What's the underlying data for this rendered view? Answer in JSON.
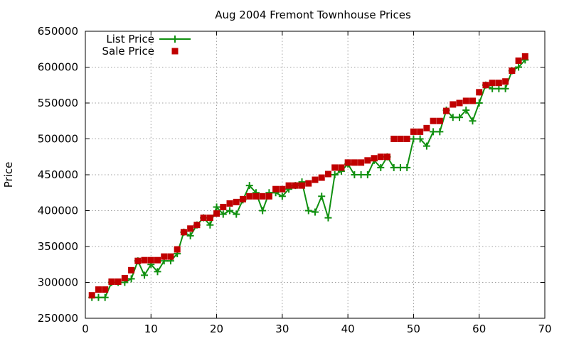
{
  "chart_data": {
    "type": "line",
    "title": "Aug 2004 Fremont Townhouse Prices",
    "xlabel": "",
    "ylabel": "Price",
    "xlim": [
      0,
      70
    ],
    "ylim": [
      250000,
      650000
    ],
    "xticks": [
      0,
      10,
      20,
      30,
      40,
      50,
      60,
      70
    ],
    "yticks": [
      250000,
      300000,
      350000,
      400000,
      450000,
      500000,
      550000,
      600000,
      650000
    ],
    "grid": true,
    "legend_position": "top-left",
    "series": [
      {
        "name": "List Price",
        "style": "linespoints",
        "color": "#109010",
        "x": [
          1,
          2,
          3,
          4,
          5,
          6,
          7,
          8,
          9,
          10,
          11,
          12,
          13,
          14,
          15,
          16,
          17,
          18,
          19,
          20,
          21,
          22,
          23,
          24,
          25,
          26,
          27,
          28,
          29,
          30,
          31,
          32,
          33,
          34,
          35,
          36,
          37,
          38,
          39,
          40,
          41,
          42,
          43,
          44,
          45,
          46,
          47,
          48,
          49,
          50,
          51,
          52,
          53,
          54,
          55,
          56,
          57,
          58,
          59,
          60,
          61,
          62,
          63,
          64,
          65,
          66,
          67
        ],
        "y": [
          279000,
          279000,
          279000,
          300000,
          300000,
          300000,
          305000,
          330000,
          310000,
          325000,
          315000,
          330000,
          330000,
          340000,
          370000,
          365000,
          380000,
          390000,
          380000,
          405000,
          395000,
          400000,
          395000,
          415000,
          435000,
          425000,
          400000,
          425000,
          425000,
          420000,
          430000,
          435000,
          440000,
          400000,
          398000,
          420000,
          390000,
          450000,
          455000,
          465000,
          450000,
          450000,
          450000,
          470000,
          460000,
          475000,
          460000,
          460000,
          460000,
          500000,
          500000,
          490000,
          510000,
          510000,
          540000,
          530000,
          530000,
          540000,
          525000,
          550000,
          575000,
          570000,
          570000,
          570000,
          595000,
          600000,
          610000
        ]
      },
      {
        "name": "Sale Price",
        "style": "points",
        "color": "#c00000",
        "x": [
          1,
          2,
          3,
          4,
          5,
          6,
          7,
          8,
          9,
          10,
          11,
          12,
          13,
          14,
          15,
          16,
          17,
          18,
          19,
          20,
          21,
          22,
          23,
          24,
          25,
          26,
          27,
          28,
          29,
          30,
          31,
          32,
          33,
          34,
          35,
          36,
          37,
          38,
          39,
          40,
          41,
          42,
          43,
          44,
          45,
          46,
          47,
          48,
          49,
          50,
          51,
          52,
          53,
          54,
          55,
          56,
          57,
          58,
          59,
          60,
          61,
          62,
          63,
          64,
          65,
          66,
          67
        ],
        "y": [
          282000,
          290000,
          290000,
          301000,
          301000,
          306000,
          317000,
          330000,
          331000,
          331000,
          331000,
          336000,
          336000,
          346000,
          370000,
          375000,
          380000,
          390000,
          390000,
          396000,
          405000,
          410000,
          412000,
          416000,
          420000,
          420000,
          420000,
          420000,
          430000,
          430000,
          435000,
          435000,
          435000,
          438000,
          443000,
          446000,
          451000,
          460000,
          460000,
          467000,
          467000,
          467000,
          470000,
          473000,
          475000,
          475000,
          500000,
          500000,
          500000,
          510000,
          510000,
          515000,
          525000,
          525000,
          539000,
          548000,
          550000,
          553000,
          553000,
          565000,
          575000,
          578000,
          578000,
          580000,
          595000,
          609000,
          615000
        ]
      }
    ]
  }
}
